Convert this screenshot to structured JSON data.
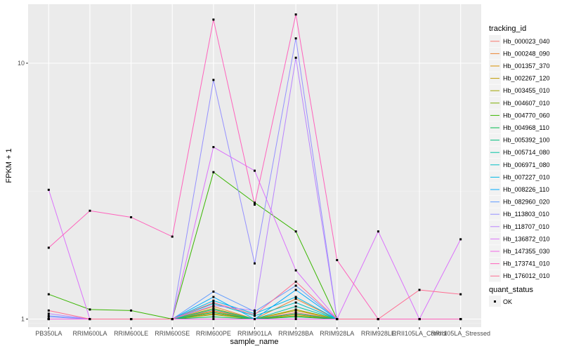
{
  "chart_data": {
    "type": "line",
    "xlabel": "sample_name",
    "ylabel": "FPKM + 1",
    "y_scale": "log10",
    "ylim": [
      0.93,
      17.0
    ],
    "y_ticks": [
      1,
      10
    ],
    "y_tick_labels": [
      "1",
      "10"
    ],
    "grid": true,
    "legend_placement": "right",
    "categories": [
      "PB350LA",
      "RRIM600LA",
      "RRIM600LE",
      "RRIM600SE",
      "RRIM600PE",
      "RRIM901LA",
      "RRIM928BA",
      "RRIM928LA",
      "RRIM928LE",
      "RRII105LA_Control",
      "RRII105LA_Stressed"
    ],
    "series": [
      {
        "name": "Hb_000023_040",
        "color": "#F8766D",
        "values": [
          1.0,
          1.0,
          1.0,
          1.0,
          1.08,
          1.0,
          1.06,
          1.0,
          1.0,
          1.0,
          1.0
        ]
      },
      {
        "name": "Hb_000248_090",
        "color": "#EA8331",
        "values": [
          1.0,
          1.0,
          1.0,
          1.0,
          1.12,
          1.0,
          1.2,
          1.0,
          1.0,
          1.0,
          1.0
        ]
      },
      {
        "name": "Hb_001357_370",
        "color": "#D89000",
        "values": [
          1.0,
          1.0,
          1.0,
          1.0,
          1.05,
          1.0,
          1.04,
          1.0,
          1.0,
          1.0,
          1.0
        ]
      },
      {
        "name": "Hb_002267_120",
        "color": "#C09B00",
        "values": [
          1.0,
          1.0,
          1.0,
          1.0,
          1.07,
          1.0,
          1.08,
          1.0,
          1.0,
          1.0,
          1.0
        ]
      },
      {
        "name": "Hb_003455_010",
        "color": "#A3A500",
        "values": [
          1.0,
          1.0,
          1.0,
          1.0,
          1.1,
          1.0,
          1.09,
          1.0,
          1.0,
          1.0,
          1.0
        ]
      },
      {
        "name": "Hb_004607_010",
        "color": "#7CAE00",
        "values": [
          1.0,
          1.0,
          1.0,
          1.0,
          1.04,
          1.0,
          1.03,
          1.0,
          1.0,
          1.0,
          1.0
        ]
      },
      {
        "name": "Hb_004770_060",
        "color": "#39B600",
        "values": [
          1.25,
          1.09,
          1.08,
          1.0,
          3.75,
          2.85,
          2.2,
          1.0,
          1.0,
          1.0,
          1.0
        ]
      },
      {
        "name": "Hb_004968_110",
        "color": "#00BB4E",
        "values": [
          1.0,
          1.0,
          1.0,
          1.0,
          1.02,
          1.0,
          1.02,
          1.0,
          1.0,
          1.0,
          1.0
        ]
      },
      {
        "name": "Hb_005392_100",
        "color": "#00BF7D",
        "values": [
          1.0,
          1.0,
          1.0,
          1.0,
          1.06,
          1.0,
          1.05,
          1.0,
          1.0,
          1.0,
          1.0
        ]
      },
      {
        "name": "Hb_005714_080",
        "color": "#00C1A3",
        "values": [
          1.0,
          1.0,
          1.0,
          1.0,
          1.09,
          1.0,
          1.12,
          1.0,
          1.0,
          1.0,
          1.0
        ]
      },
      {
        "name": "Hb_006971_080",
        "color": "#00BFC4",
        "values": [
          1.0,
          1.0,
          1.0,
          1.0,
          1.15,
          1.03,
          1.16,
          1.0,
          1.0,
          1.0,
          1.0
        ]
      },
      {
        "name": "Hb_007227_010",
        "color": "#00B8E5",
        "values": [
          1.0,
          1.0,
          1.0,
          1.0,
          1.18,
          1.05,
          1.22,
          1.0,
          1.0,
          1.0,
          1.0
        ]
      },
      {
        "name": "Hb_008226_110",
        "color": "#00A9FF",
        "values": [
          1.0,
          1.0,
          1.0,
          1.0,
          1.22,
          1.0,
          1.3,
          1.0,
          1.0,
          1.0,
          1.0
        ]
      },
      {
        "name": "Hb_082960_020",
        "color": "#619CFF",
        "values": [
          1.03,
          1.0,
          1.0,
          1.0,
          1.28,
          1.07,
          1.35,
          1.0,
          1.0,
          1.0,
          1.0
        ]
      },
      {
        "name": "Hb_113803_010",
        "color": "#9590FF",
        "values": [
          1.02,
          1.0,
          1.0,
          1.0,
          8.6,
          1.65,
          12.5,
          1.0,
          1.0,
          1.0,
          1.0
        ]
      },
      {
        "name": "Hb_118707_010",
        "color": "#B983FF",
        "values": [
          1.05,
          1.0,
          1.0,
          1.0,
          1.13,
          1.08,
          10.5,
          1.0,
          1.0,
          1.0,
          1.0
        ]
      },
      {
        "name": "Hb_136872_010",
        "color": "#DB72FB",
        "values": [
          3.2,
          1.0,
          1.0,
          1.0,
          4.7,
          3.8,
          1.55,
          1.0,
          2.2,
          1.0,
          2.05
        ]
      },
      {
        "name": "Hb_147355_030",
        "color": "#F265E7",
        "values": [
          1.0,
          1.0,
          1.0,
          1.0,
          1.0,
          1.0,
          1.0,
          1.0,
          1.0,
          1.0,
          1.0
        ]
      },
      {
        "name": "Hb_173741_010",
        "color": "#FF62BC",
        "values": [
          1.9,
          2.65,
          2.5,
          2.1,
          14.8,
          2.8,
          15.5,
          1.7,
          1.0,
          1.0,
          1.0
        ]
      },
      {
        "name": "Hb_176012_010",
        "color": "#FF6C91",
        "values": [
          1.08,
          1.0,
          1.0,
          1.0,
          1.16,
          1.04,
          1.4,
          1.0,
          1.0,
          1.3,
          1.25
        ]
      }
    ],
    "point_legend": {
      "title": "quant_status",
      "items": [
        "OK"
      ]
    },
    "legend_title": "tracking_id"
  }
}
